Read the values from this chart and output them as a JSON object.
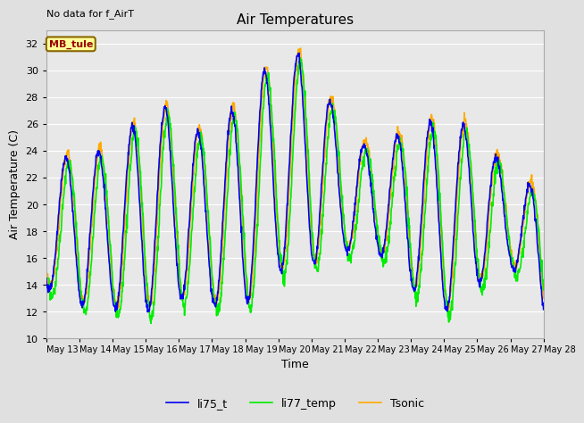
{
  "title": "Air Temperatures",
  "xlabel": "Time",
  "ylabel": "Air Temperature (C)",
  "ylim": [
    10,
    33
  ],
  "annotation": "No data for f_AirT",
  "legend_label": "MB_tule",
  "series_labels": [
    "li75_t",
    "li77_temp",
    "Tsonic"
  ],
  "series_colors": [
    "#0000ee",
    "#00ee00",
    "#ffaa00"
  ],
  "series_lw": [
    1.2,
    1.2,
    1.2
  ],
  "bg_color": "#e8e8e8",
  "grid_color": "#ffffff",
  "yticks": [
    10,
    12,
    14,
    16,
    18,
    20,
    22,
    24,
    26,
    28,
    30,
    32
  ],
  "peak_heights": [
    22.0,
    24.5,
    23.5,
    27.5,
    27.0,
    24.2,
    29.0,
    30.7,
    31.5,
    24.8,
    24.2,
    25.8,
    26.4,
    25.5,
    22.0,
    21.0,
    26.0
  ],
  "trough_heights": [
    13.8,
    12.5,
    12.2,
    12.0,
    13.0,
    12.5,
    12.5,
    15.0,
    15.5,
    16.5,
    16.5,
    13.8,
    12.0,
    14.0,
    15.5,
    11.5,
    10.5
  ],
  "n_days": 15,
  "tick_labels": [
    "May 13",
    "May 14",
    "May 15",
    "May 16",
    "May 17",
    "May 18",
    "May 19",
    "May 20",
    "May 21",
    "May 22",
    "May 23",
    "May 24",
    "May 25",
    "May 26",
    "May 27",
    "May 28"
  ]
}
